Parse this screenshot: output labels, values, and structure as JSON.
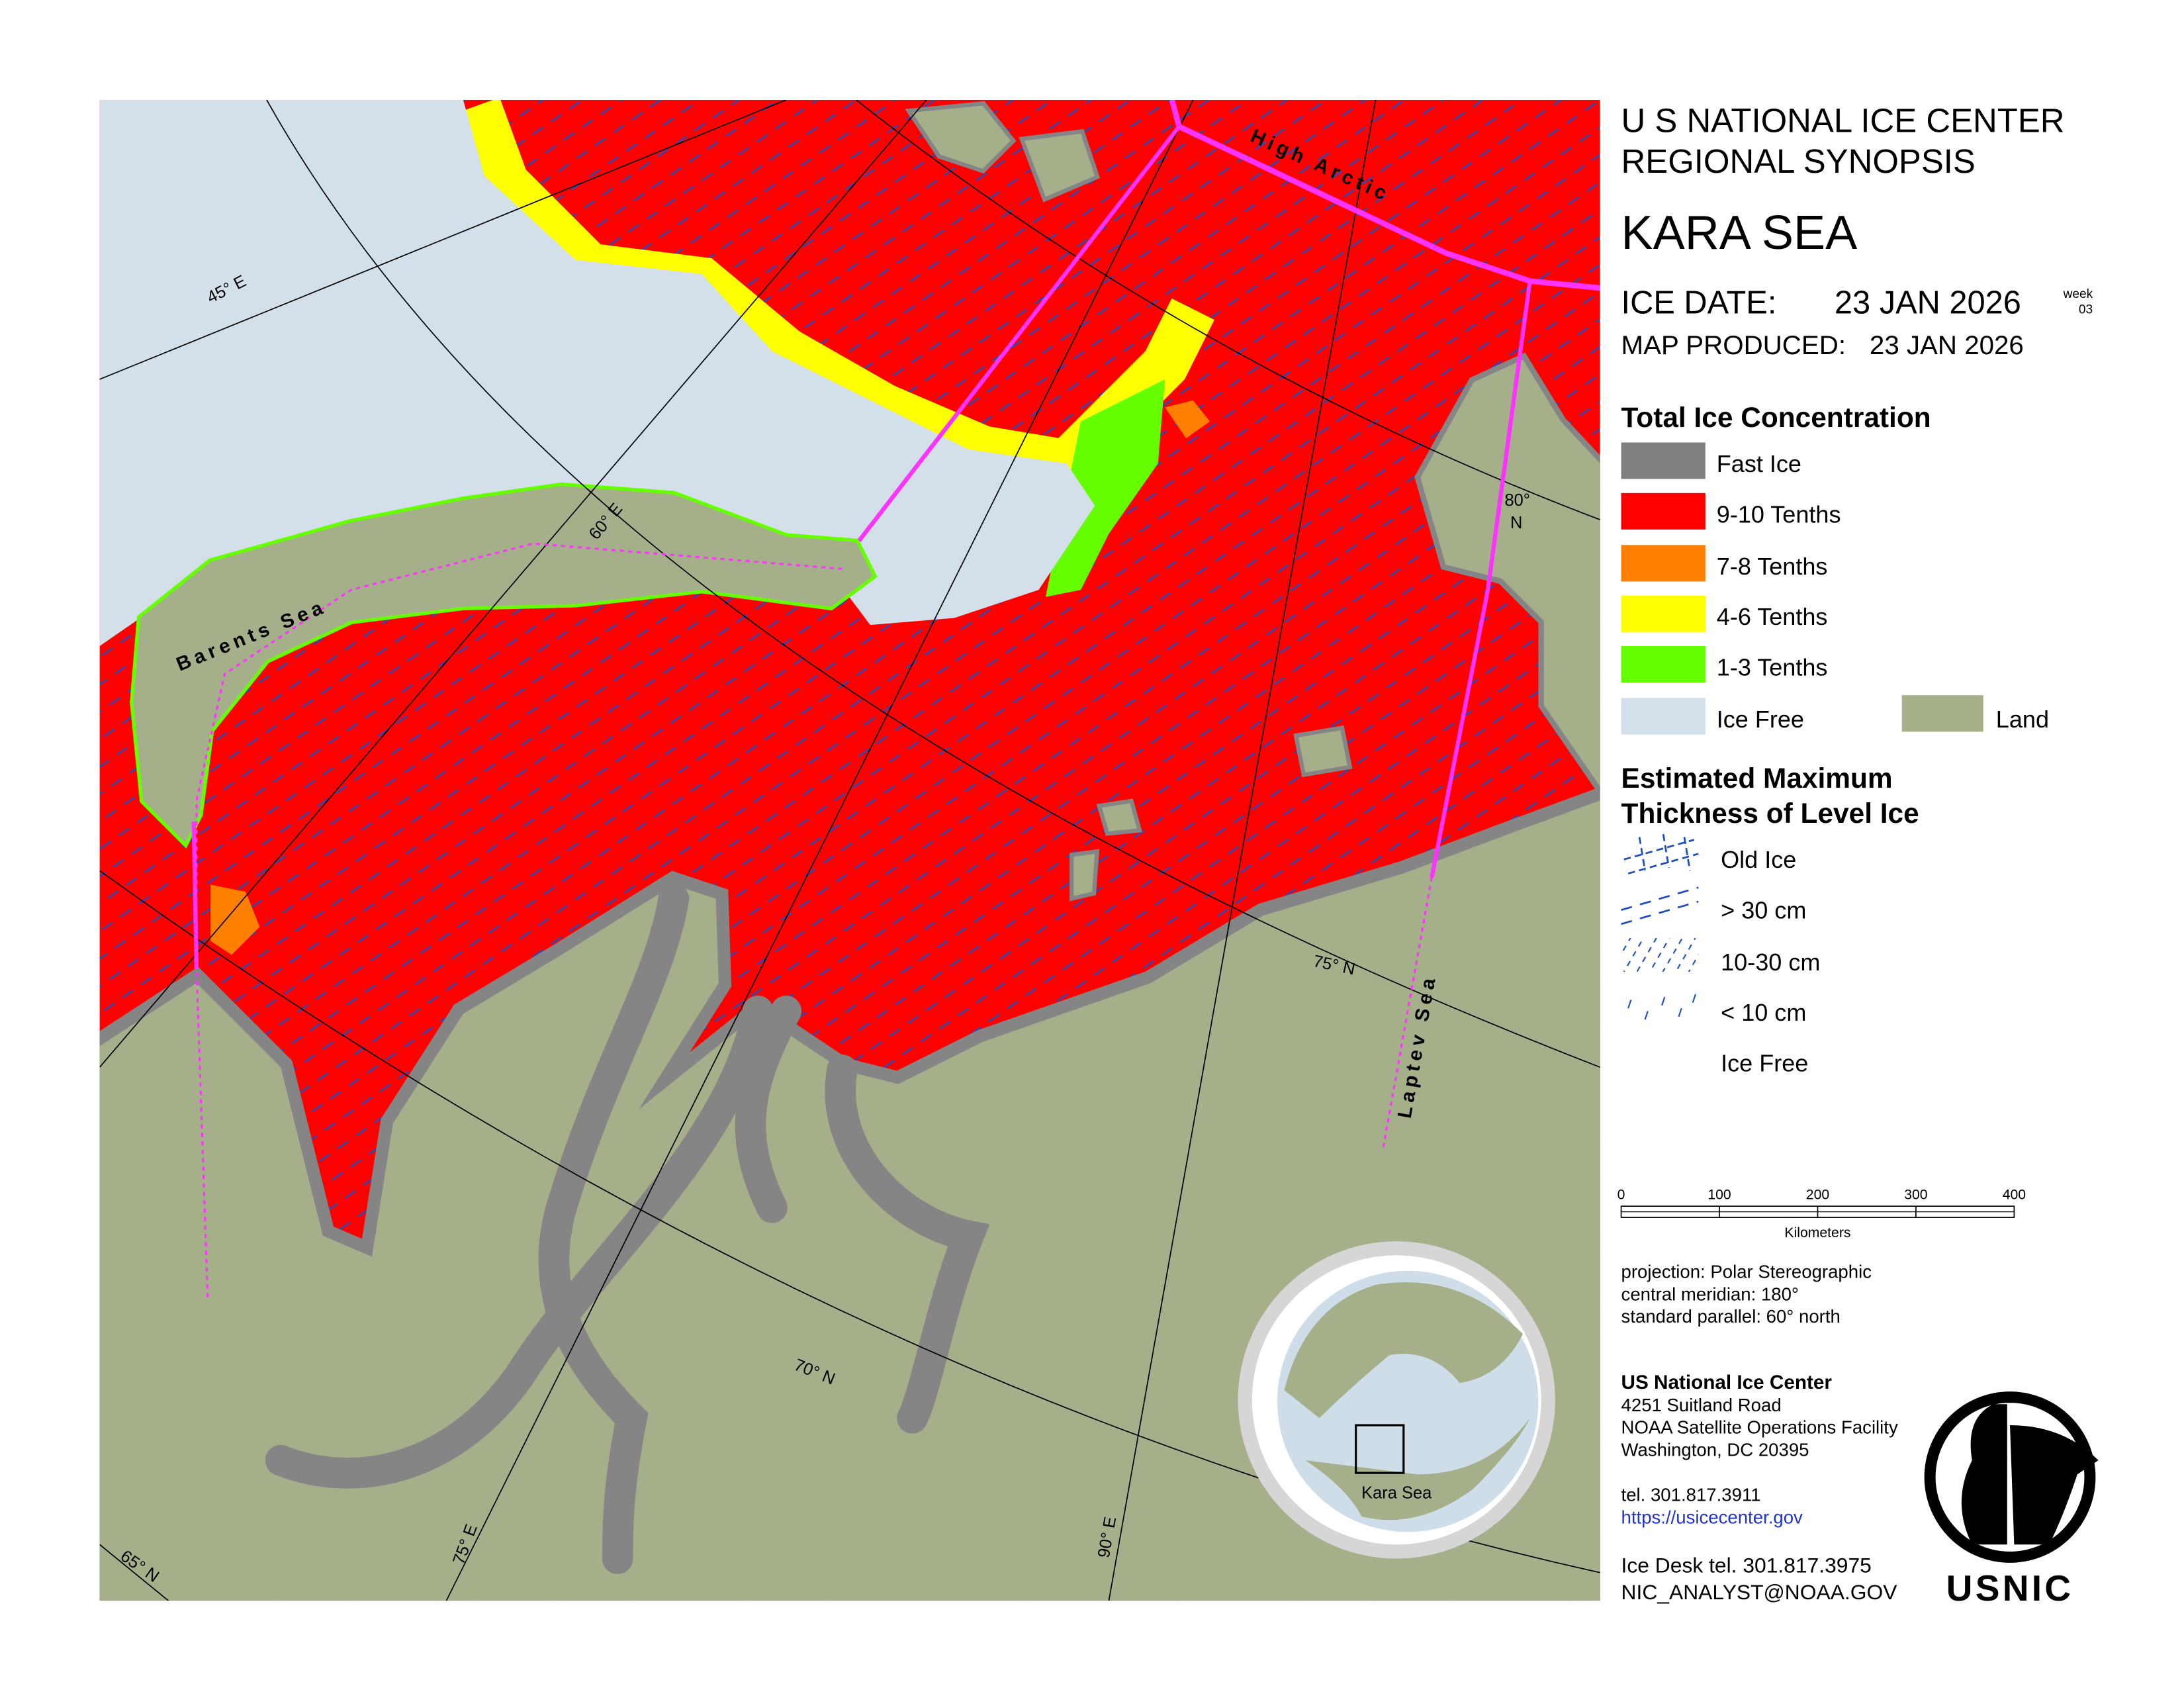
{
  "header": {
    "org_line1": "U S NATIONAL ICE CENTER",
    "org_line2": "REGIONAL SYNOPSIS",
    "region": "KARA SEA",
    "ice_date_label": "ICE DATE:",
    "ice_date": "23 JAN 2026",
    "week_label": "week",
    "week": "03",
    "produced_label": "MAP PRODUCED:",
    "produced_date": "23 JAN 2026"
  },
  "concentration_legend": {
    "title": "Total Ice Concentration",
    "items": [
      "Fast Ice",
      "9-10 Tenths",
      "7-8 Tenths",
      "4-6 Tenths",
      "1-3 Tenths",
      "Ice Free",
      "Land"
    ]
  },
  "thickness_legend": {
    "title_line1": "Estimated Maximum",
    "title_line2": "Thickness of Level Ice",
    "items": [
      "Old Ice",
      "> 30 cm",
      "10-30 cm",
      "< 10 cm",
      "Ice Free"
    ]
  },
  "scale_bar": {
    "ticks": [
      0,
      100,
      200,
      300,
      400
    ],
    "unit": "Kilometers"
  },
  "projection": [
    "projection: Polar Stereographic",
    "central meridian: 180°",
    "standard parallel:  60° north"
  ],
  "inset": {
    "label": "Kara Sea"
  },
  "contact": {
    "name": "US National Ice Center",
    "address": [
      "4251 Suitland Road",
      "NOAA Satellite Operations Facility",
      "Washington, DC  20395"
    ],
    "tel": "tel. 301.817.3911",
    "url": "https://usicecenter.gov",
    "desk_tel": "Ice Desk tel. 301.817.3975",
    "email": "NIC_ANALYST@NOAA.GOV"
  },
  "logo": {
    "text": "USNIC"
  },
  "map_labels": {
    "lon_45": "45° E",
    "lon_60": "60° E",
    "lon_75": "75° E",
    "lon_90": "90° E",
    "lat_65": "65° N",
    "lat_70": "70° N",
    "lat_75": "75° N",
    "lat_80_deg": "80°",
    "lat_80_n": "N",
    "barents": "Barents Sea",
    "high_arctic": "High Arctic",
    "laptev": "Laptev Sea"
  }
}
